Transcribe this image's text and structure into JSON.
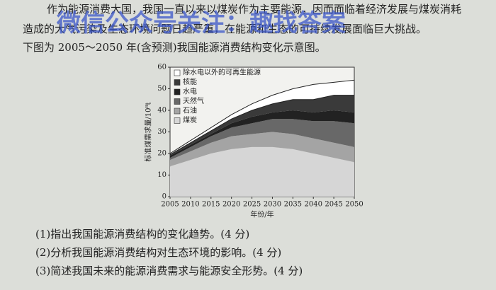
{
  "text": {
    "watermark": "微信公众号关注：趣找答案",
    "lines": [
      "作为能源消费大国，我国一直以来以煤炭作为主要能源，因而面临着经济发展与煤炭消耗",
      "造成的大气污染及生态环境问题日趋严重，在能源和生态的可持续发展面临巨大挑战。",
      "下图为 2005～2050 年(含预测)我国能源消费结构变化示意图。"
    ],
    "questions": [
      "(1)指出我国能源消费结构的变化趋势。(4 分)",
      "(2)分析我国能源消费结构对生态环境的影响。(4 分)",
      "(3)简述我国未来的能源消费需求与能源安全形势。(4 分)"
    ]
  },
  "chart_data": {
    "type": "stacked-area",
    "x": [
      2005,
      2010,
      2015,
      2020,
      2025,
      2030,
      2035,
      2040,
      2045,
      2050
    ],
    "xlim": [
      2005,
      2050
    ],
    "xticks": [
      2005,
      2010,
      2015,
      2020,
      2025,
      2030,
      2035,
      2040,
      2045,
      2050
    ],
    "ylim": [
      0,
      60
    ],
    "yticks": [
      0,
      10,
      20,
      30,
      40,
      50,
      60
    ],
    "x_label": "年份/年",
    "y_label": "标准煤需求量/10⁸t",
    "series": [
      {
        "name": "煤炭",
        "color": "#d6d6d6",
        "values": [
          14,
          17,
          20,
          22,
          23,
          23,
          22,
          20,
          18,
          16
        ]
      },
      {
        "name": "石油",
        "color": "#a4a4a4",
        "values": [
          3,
          4,
          5,
          6,
          6,
          7,
          7,
          7,
          7,
          7
        ]
      },
      {
        "name": "天然气",
        "color": "#686868",
        "values": [
          1,
          2,
          3,
          4,
          5,
          6,
          7,
          8,
          10,
          11
        ]
      },
      {
        "name": "水电",
        "color": "#222222",
        "values": [
          1,
          1,
          1,
          2,
          3,
          3,
          4,
          4,
          5,
          5
        ]
      },
      {
        "name": "核能",
        "color": "#3a3a3a",
        "values": [
          0.5,
          1,
          1.5,
          2,
          3,
          4,
          5,
          6,
          7,
          8
        ]
      },
      {
        "name": "除水电以外的可再生能源",
        "color": "#ffffff",
        "values": [
          0.5,
          1,
          1.5,
          2,
          3,
          4,
          5,
          7,
          6,
          7
        ]
      }
    ]
  }
}
